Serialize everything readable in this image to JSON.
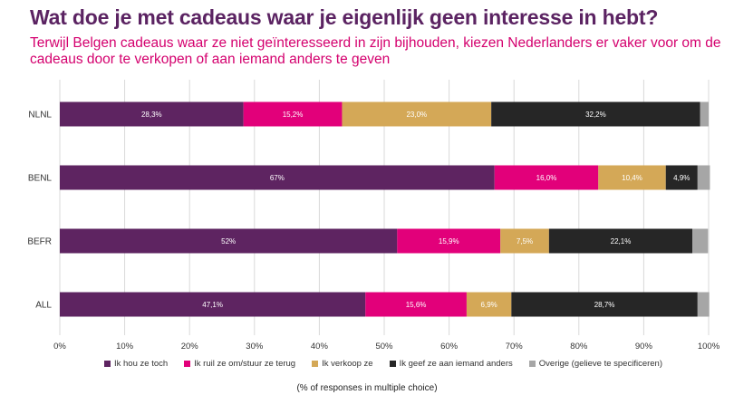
{
  "title": "Wat doe je met cadeaus waar je eigenlijk geen interesse in hebt?",
  "subtitle": "Terwijl Belgen cadeaus waar ze niet geïnteresseerd in zijn bijhouden, kiezen Nederlanders er vaker voor om de cadeaus door te verkopen of aan iemand anders te geven",
  "xlabel": "(% of responses in multiple choice)",
  "chart_data": {
    "type": "bar",
    "orientation": "horizontal",
    "stacked": true,
    "categories": [
      "NLNL",
      "BENL",
      "BEFR",
      "ALL"
    ],
    "xlim": [
      0,
      100
    ],
    "xticks": [
      "0%",
      "10%",
      "20%",
      "30%",
      "40%",
      "50%",
      "60%",
      "70%",
      "80%",
      "90%",
      "100%"
    ],
    "grid": true,
    "legend_position": "bottom",
    "series": [
      {
        "name": "Ik hou ze toch",
        "color": "#5e2461",
        "values": [
          28.3,
          67,
          52,
          47.1
        ],
        "labels": [
          "28,3%",
          "67%",
          "52%",
          "47,1%"
        ]
      },
      {
        "name": "Ik ruil ze om/stuur ze terug",
        "color": "#e2007a",
        "values": [
          15.2,
          16.0,
          15.9,
          15.6
        ],
        "labels": [
          "15,2%",
          "16,0%",
          "15,9%",
          "15,6%"
        ]
      },
      {
        "name": "Ik verkoop ze",
        "color": "#d4a857",
        "values": [
          23.0,
          10.4,
          7.5,
          6.9
        ],
        "labels": [
          "23,0%",
          "10,4%",
          "7,5%",
          "6,9%"
        ]
      },
      {
        "name": "Ik geef ze aan iemand anders",
        "color": "#262626",
        "values": [
          32.2,
          4.9,
          22.1,
          28.7
        ],
        "labels": [
          "32,2%",
          "4,9%",
          "22,1%",
          "28,7%"
        ]
      },
      {
        "name": "Overige (gelieve te specificeren)",
        "color": "#a6a6a6",
        "values": [
          1.3,
          1.9,
          2.4,
          1.8
        ],
        "labels": [
          "",
          "",
          "",
          ""
        ]
      }
    ]
  }
}
